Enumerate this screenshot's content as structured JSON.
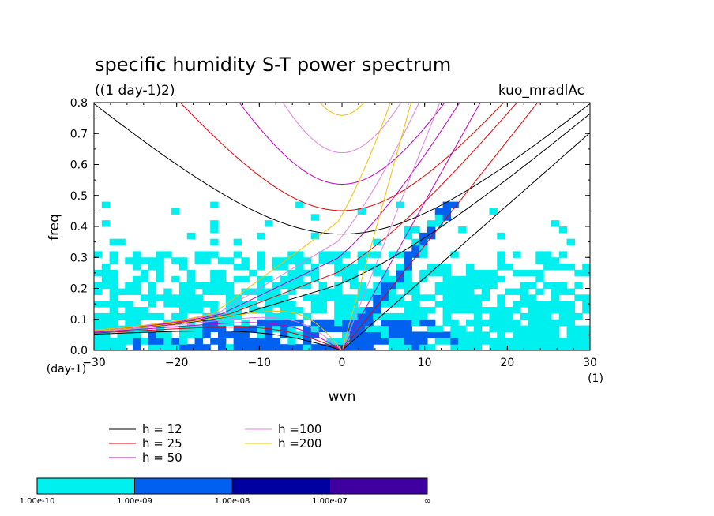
{
  "chart_data": {
    "type": "contour",
    "title": "specific humidity S-T power spectrum",
    "subtitle": "((1 day-1)2)",
    "run_label": "kuo_mradlAc",
    "xlabel": "wvn",
    "ylabel": "freq",
    "x_unit": "(1)",
    "y_unit": "(day-1)",
    "xlim": [
      -30,
      30
    ],
    "ylim": [
      0,
      0.8
    ],
    "x_ticks": [
      "−30",
      "−20",
      "−10",
      "0",
      "10",
      "20",
      "30"
    ],
    "x_tick_values": [
      -30,
      -20,
      -10,
      0,
      10,
      20,
      30
    ],
    "y_ticks": [
      "0.0",
      "0.1",
      "0.2",
      "0.3",
      "0.4",
      "0.5",
      "0.6",
      "0.7",
      "0.8"
    ],
    "y_tick_values": [
      0,
      0.1,
      0.2,
      0.3,
      0.4,
      0.5,
      0.6,
      0.7,
      0.8
    ],
    "dispersion_curves": [
      {
        "label": "h = 12",
        "h": 12,
        "color": "#000000"
      },
      {
        "label": "h = 25",
        "h": 25,
        "color": "#e00000"
      },
      {
        "label": "h = 50",
        "h": 50,
        "color": "#c000c0"
      },
      {
        "label": "h =100",
        "h": 100,
        "color": "#e080e0"
      },
      {
        "label": "h =200",
        "h": 200,
        "color": "#f0c000"
      }
    ],
    "colorbar": {
      "labels": [
        "1.00e-10",
        "1.00e-09",
        "1.00e-08",
        "1.00e-07",
        "∞"
      ],
      "colors": [
        "#00f0f0",
        "#0060f0",
        "#0000a0",
        "#4000a0"
      ]
    },
    "contour_regions": [
      {
        "level": "1.00e-10 – 1.00e-09",
        "color": "#00f0f0",
        "x_range": [
          -30,
          30
        ],
        "freq_range": [
          0,
          0.3
        ]
      },
      {
        "level": "1.00e-09 – 1.00e-08",
        "color": "#0060f0",
        "x_range": [
          -17,
          12
        ],
        "freq_range": [
          0,
          0.1
        ]
      },
      {
        "level": "1.00e-09 – 1.00e-08",
        "color": "#0060f0",
        "x_range": [
          0,
          13
        ],
        "freq_range": [
          0.1,
          0.47
        ]
      }
    ]
  }
}
